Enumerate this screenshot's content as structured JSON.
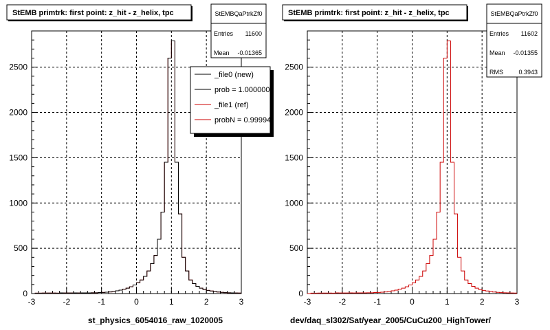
{
  "chart_data": [
    {
      "type": "histogram",
      "title": "StEMB primtrk: first point: z_hit - z_helix, tpc",
      "xlabel": "st_physics_6054016_raw_1020005",
      "ylabel": "",
      "xlim": [
        -3,
        3
      ],
      "ylim": [
        0,
        2900
      ],
      "x_ticks": [
        "-3",
        "-2",
        "-1",
        "0",
        "1",
        "2",
        "3"
      ],
      "y_ticks": [
        "0",
        "500",
        "1000",
        "1500",
        "2000",
        "2500"
      ],
      "grid": true,
      "stats_box": {
        "name": "StEMBQaPtrkZf0",
        "rows": [
          {
            "label": "Entries",
            "value": "11600"
          },
          {
            "label": "Mean",
            "value": "-0.01365"
          }
        ]
      },
      "legend": {
        "position": "top-right",
        "entries": [
          {
            "label": "_file0 (new)",
            "color": "#000000"
          },
          {
            "label": "prob = 1.000000",
            "color": "#000000"
          },
          {
            "label": "_file1 (ref)",
            "color": "#cc0000"
          },
          {
            "label": "probN = 0.99994",
            "color": "#cc0000"
          }
        ]
      },
      "bin_width": 0.1,
      "bin_start": -3.0,
      "series": [
        {
          "color": "#cc0000",
          "values": [
            0,
            5,
            5,
            6,
            6,
            6,
            6,
            5,
            8,
            7,
            7,
            7,
            8,
            7,
            8,
            8,
            8,
            9,
            9,
            11,
            12,
            15,
            18,
            22,
            30,
            38,
            48,
            60,
            75,
            95,
            120,
            150,
            190,
            250,
            330,
            420,
            600,
            900,
            1450,
            2600,
            2790,
            1450,
            880,
            400,
            250,
            150,
            110,
            80,
            60,
            45,
            35,
            28,
            22,
            17,
            13,
            10,
            9,
            8,
            7,
            6
          ]
        },
        {
          "color": "#000000",
          "values": [
            0,
            5,
            5,
            6,
            6,
            6,
            6,
            5,
            8,
            7,
            7,
            7,
            8,
            7,
            8,
            8,
            8,
            9,
            9,
            11,
            12,
            15,
            18,
            22,
            30,
            38,
            48,
            60,
            75,
            95,
            120,
            150,
            190,
            250,
            330,
            420,
            600,
            900,
            1450,
            2600,
            2790,
            1450,
            880,
            400,
            250,
            150,
            110,
            80,
            60,
            45,
            35,
            28,
            22,
            17,
            13,
            10,
            9,
            8,
            7,
            6
          ]
        }
      ]
    },
    {
      "type": "histogram",
      "title": "StEMB primtrk: first point: z_hit - z_helix, tpc",
      "xlabel": "dev/daq_sl302/Sat/year_2005/CuCu200_HighTower/",
      "ylabel": "",
      "xlim": [
        -3,
        3
      ],
      "ylim": [
        0,
        2900
      ],
      "x_ticks": [
        "-3",
        "-2",
        "-1",
        "0",
        "1",
        "2",
        "3"
      ],
      "y_ticks": [
        "0",
        "500",
        "1000",
        "1500",
        "2000",
        "2500"
      ],
      "grid": true,
      "stats_box": {
        "name": "StEMBQaPtrkZf0",
        "rows": [
          {
            "label": "Entries",
            "value": "11602"
          },
          {
            "label": "Mean",
            "value": "-0.01355"
          },
          {
            "label": "RMS",
            "value": "0.3943"
          }
        ]
      },
      "bin_width": 0.1,
      "bin_start": -3.0,
      "series": [
        {
          "color": "#cc0000",
          "values": [
            0,
            5,
            5,
            6,
            6,
            6,
            6,
            5,
            8,
            7,
            7,
            7,
            8,
            7,
            8,
            8,
            8,
            9,
            9,
            11,
            12,
            15,
            18,
            22,
            30,
            38,
            48,
            60,
            75,
            95,
            120,
            150,
            190,
            250,
            330,
            420,
            600,
            900,
            1450,
            2600,
            2790,
            1450,
            880,
            400,
            250,
            150,
            110,
            80,
            60,
            45,
            35,
            28,
            22,
            17,
            13,
            10,
            9,
            8,
            7,
            6
          ]
        }
      ]
    }
  ]
}
